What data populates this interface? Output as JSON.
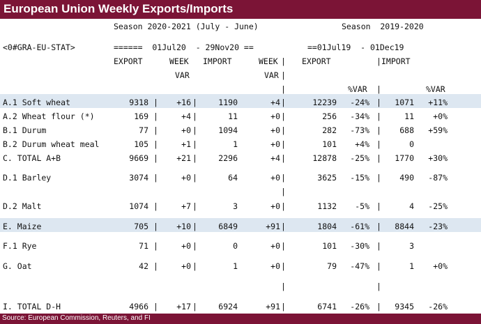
{
  "title": "European Union Weekly Exports/Imports",
  "footer": "Source: European Commission, Reuters, and FI",
  "header": {
    "season_current": "Season 2020-2021 (July - June)",
    "season_prior": "Season  2019-2020",
    "ric": "<0#GRA-EU-STAT>",
    "period_current": "======  01Jul20  - 29Nov20 ==",
    "period_prior": "==01Jul19  - 01Dec19",
    "col_export": "EXPORT",
    "col_week": "WEEK",
    "col_import": "IMPORT",
    "col_week2": "WEEK",
    "col_export2": "EXPORT",
    "col_import2": "IMPORT",
    "var": "VAR",
    "var2": "VAR",
    "pct_var": "%VAR",
    "pct_var2": "%VAR",
    "sep": "|"
  },
  "rows": [
    {
      "label": "A.1 Soft wheat",
      "export": "9318",
      "week_var": "+16",
      "import": "1190",
      "week_var2": "+4",
      "export_prior": "12239",
      "export_pct": "-24%",
      "import_prior": "1071",
      "import_pct": "+11%",
      "highlight": true
    },
    {
      "label": "A.2 Wheat flour (*)",
      "export": "169",
      "week_var": "+4",
      "import": "11",
      "week_var2": "+0",
      "export_prior": "256",
      "export_pct": "-34%",
      "import_prior": "11",
      "import_pct": "+0%"
    },
    {
      "label": "B.1 Durum",
      "export": "77",
      "week_var": "+0",
      "import": "1094",
      "week_var2": "+0",
      "export_prior": "282",
      "export_pct": "-73%",
      "import_prior": "688",
      "import_pct": "+59%"
    },
    {
      "label": "B.2 Durum wheat meal",
      "export": "105",
      "week_var": "+1",
      "import": "1",
      "week_var2": "+0",
      "export_prior": "101",
      "export_pct": "+4%",
      "import_prior": "0",
      "import_pct": ""
    },
    {
      "label": "C. TOTAL A+B",
      "export": "9669",
      "week_var": "+21",
      "import": "2296",
      "week_var2": "+4",
      "export_prior": "12878",
      "export_pct": "-25%",
      "import_prior": "1770",
      "import_pct": "+30%"
    },
    {
      "label": "D.1 Barley",
      "export": "3074",
      "week_var": "+0",
      "import": "64",
      "week_var2": "+0",
      "export_prior": "3625",
      "export_pct": "-15%",
      "import_prior": "490",
      "import_pct": "-87%"
    },
    {
      "label": "D.2 Malt",
      "export": "1074",
      "week_var": "+7",
      "import": "3",
      "week_var2": "+0",
      "export_prior": "1132",
      "export_pct": "-5%",
      "import_prior": "4",
      "import_pct": "-25%"
    },
    {
      "label": "E. Maize",
      "export": "705",
      "week_var": "+10",
      "import": "6849",
      "week_var2": "+91",
      "export_prior": "1804",
      "export_pct": "-61%",
      "import_prior": "8844",
      "import_pct": "-23%",
      "highlight": true
    },
    {
      "label": "F.1 Rye",
      "export": "71",
      "week_var": "+0",
      "import": "0",
      "week_var2": "+0",
      "export_prior": "101",
      "export_pct": "-30%",
      "import_prior": "3",
      "import_pct": ""
    },
    {
      "label": "G. Oat",
      "export": "42",
      "week_var": "+0",
      "import": "1",
      "week_var2": "+0",
      "export_prior": "79",
      "export_pct": "-47%",
      "import_prior": "1",
      "import_pct": "+0%"
    },
    {
      "label": "I. TOTAL D-H",
      "export": "4966",
      "week_var": "+17",
      "import": "6924",
      "week_var2": "+91",
      "export_prior": "6741",
      "export_pct": "-26%",
      "import_prior": "9345",
      "import_pct": "-26%"
    }
  ]
}
